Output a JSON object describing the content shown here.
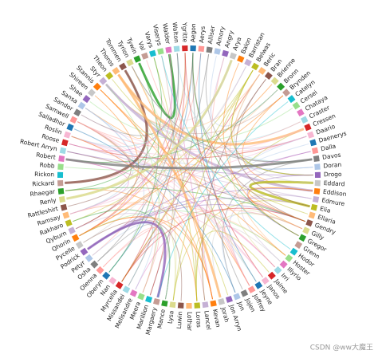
{
  "nodes": [
    {
      "label": "Aegon"
    },
    {
      "label": "Aerys"
    },
    {
      "label": "Alliser"
    },
    {
      "label": "Amory"
    },
    {
      "label": "Angry"
    },
    {
      "label": "Arya"
    },
    {
      "label": "Balon"
    },
    {
      "label": "Barristan"
    },
    {
      "label": "Belwas"
    },
    {
      "label": "Beric"
    },
    {
      "label": "Bran"
    },
    {
      "label": "Brienne"
    },
    {
      "label": "Bronn"
    },
    {
      "label": "Brynden"
    },
    {
      "label": "Catelyn"
    },
    {
      "label": "Cersei"
    },
    {
      "label": "Chataya"
    },
    {
      "label": "Craster"
    },
    {
      "label": "Cressen"
    },
    {
      "label": "Daario"
    },
    {
      "label": "Daenerys"
    },
    {
      "label": "Dalla"
    },
    {
      "label": "Davos"
    },
    {
      "label": "Doran"
    },
    {
      "label": "Drogo"
    },
    {
      "label": "Eddard"
    },
    {
      "label": "Eddison"
    },
    {
      "label": "Edmure"
    },
    {
      "label": "Elia"
    },
    {
      "label": "Ellaria"
    },
    {
      "label": "Gendry"
    },
    {
      "label": "Gilly"
    },
    {
      "label": "Gregor"
    },
    {
      "label": "Grenn"
    },
    {
      "label": "Hodor"
    },
    {
      "label": "Hoster"
    },
    {
      "label": "Illyrio"
    },
    {
      "label": "Irri"
    },
    {
      "label": "Jaime"
    },
    {
      "label": "Janos"
    },
    {
      "label": "Jeyne"
    },
    {
      "label": "Joffrey"
    },
    {
      "label": "Jojen"
    },
    {
      "label": "Jon"
    },
    {
      "label": "Jon Arryn"
    },
    {
      "label": "Jorah"
    },
    {
      "label": "Kevan"
    },
    {
      "label": "Lancel"
    },
    {
      "label": "Loras"
    },
    {
      "label": "Lothar"
    },
    {
      "label": "Luwin"
    },
    {
      "label": "Lysa"
    },
    {
      "label": "Mance"
    },
    {
      "label": "Margaery"
    },
    {
      "label": "Marillion"
    },
    {
      "label": "Meera"
    },
    {
      "label": "Melisandre"
    },
    {
      "label": "Missandei"
    },
    {
      "label": "Myrcella"
    },
    {
      "label": "Nan"
    },
    {
      "label": "Oberyn"
    },
    {
      "label": "Olenna"
    },
    {
      "label": "Osha"
    },
    {
      "label": "Petyr"
    },
    {
      "label": "Podrick"
    },
    {
      "label": "Pycelle"
    },
    {
      "label": "Qhorin"
    },
    {
      "label": "Qyburn"
    },
    {
      "label": "Rakharo"
    },
    {
      "label": "Ramsay"
    },
    {
      "label": "Rattleshirt"
    },
    {
      "label": "Renly"
    },
    {
      "label": "Rhaegar"
    },
    {
      "label": "Rickard"
    },
    {
      "label": "Rickon"
    },
    {
      "label": "Robb"
    },
    {
      "label": "Robert"
    },
    {
      "label": "Robert Arryn"
    },
    {
      "label": "Roose"
    },
    {
      "label": "Roslin"
    },
    {
      "label": "Salladhor"
    },
    {
      "label": "Samwell"
    },
    {
      "label": "Sandor"
    },
    {
      "label": "Sansa"
    },
    {
      "label": "Shae"
    },
    {
      "label": "Shireen"
    },
    {
      "label": "Stannis"
    },
    {
      "label": "Styr"
    },
    {
      "label": "Theon"
    },
    {
      "label": "Thoros"
    },
    {
      "label": "Tommen"
    },
    {
      "label": "Tyrion"
    },
    {
      "label": "Tywin"
    },
    {
      "label": "Val"
    },
    {
      "label": "Varys"
    },
    {
      "label": "Viserys"
    },
    {
      "label": "Walder"
    },
    {
      "label": "Walton"
    },
    {
      "label": "Ygritte"
    }
  ],
  "watermark": "CSDN @ww大魔王"
}
